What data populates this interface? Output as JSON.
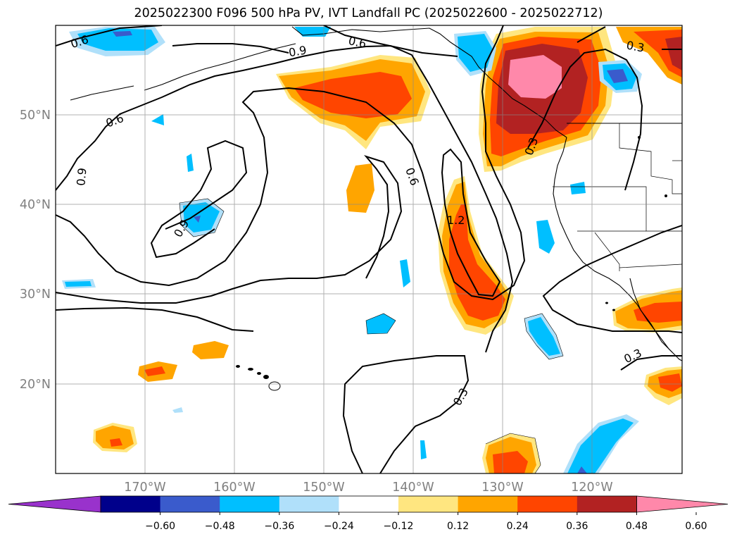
{
  "title": "2025022300 F096 500 hPa PV, IVT Landfall PC (2025022600 - 2025022712)",
  "lat_labels": [
    "50°N",
    "40°N",
    "30°N",
    "20°N"
  ],
  "lon_labels": [
    "170°W",
    "160°W",
    "150°W",
    "140°W",
    "130°W",
    "120°W"
  ],
  "contour_labels": [
    "0.6",
    "0.6",
    "0.9",
    "0.6",
    "0.9",
    "0.9",
    "0.6",
    "1.2",
    "0.3",
    "0.3",
    "0.3",
    "0.3"
  ],
  "colorbar": {
    "ticks": [
      "−0.60",
      "−0.48",
      "−0.36",
      "−0.24",
      "−0.12",
      "0.12",
      "0.24",
      "0.36",
      "0.48",
      "0.60"
    ],
    "colors": [
      "#9932cc",
      "#00008b",
      "#3a5bcc",
      "#00bfff",
      "#b0e0fa",
      "#ffffff",
      "#ffe680",
      "#ffa500",
      "#ff4500",
      "#b22222",
      "#ff88aa"
    ]
  }
}
